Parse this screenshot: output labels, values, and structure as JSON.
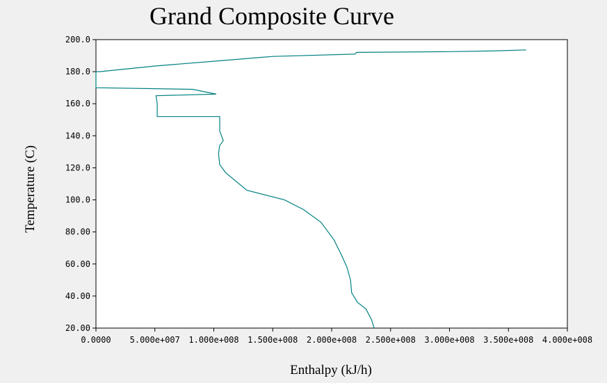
{
  "window": {
    "background": "#f0f0f0",
    "plot_background": "#ffffff"
  },
  "chart_data": {
    "type": "line",
    "title": "Grand Composite Curve",
    "xlabel": "Enthalpy (kJ/h)",
    "ylabel": "Temperature (C)",
    "xlim": [
      0,
      400000000
    ],
    "ylim": [
      20,
      200
    ],
    "x_tick_values": [
      0,
      50000000,
      100000000,
      150000000,
      200000000,
      250000000,
      300000000,
      350000000,
      400000000
    ],
    "x_tick_labels": [
      "0.0000",
      "5.000e+007",
      "1.000e+008",
      "1.500e+008",
      "2.000e+008",
      "2.500e+008",
      "3.000e+008",
      "3.500e+008",
      "4.000e+008"
    ],
    "y_tick_values": [
      20,
      40,
      60,
      80,
      100,
      120,
      140,
      160,
      180,
      200
    ],
    "y_tick_labels": [
      "20.00",
      "40.00",
      "60.00",
      "80.00",
      "100.0",
      "120.0",
      "140.0",
      "160.0",
      "180.0",
      "200.0"
    ],
    "grid": false,
    "legend": "none",
    "line_color": "#008080",
    "series": [
      {
        "x": [
          236000000,
          234000000,
          229000000,
          222000000,
          217000000,
          216000000,
          213000000,
          208000000,
          202000000,
          191000000,
          176000000,
          160000000,
          128000000,
          110000000,
          105000000,
          104000000,
          105000000,
          108000000,
          105000000,
          105000000,
          52000000,
          52000000,
          51000000,
          102000000,
          82000000,
          0,
          0,
          3000000,
          50000000,
          100000000,
          150000000,
          220000000,
          221000000,
          300000000,
          340000000,
          365000000
        ],
        "y": [
          20,
          25,
          32,
          36,
          42,
          50,
          58,
          66,
          75,
          86,
          94,
          100,
          106,
          117,
          122,
          129,
          134,
          137,
          143,
          152,
          152,
          160,
          165,
          166,
          169,
          170,
          180,
          180,
          183.5,
          186.5,
          189.5,
          191,
          192,
          192.5,
          193,
          193.6
        ]
      }
    ]
  }
}
